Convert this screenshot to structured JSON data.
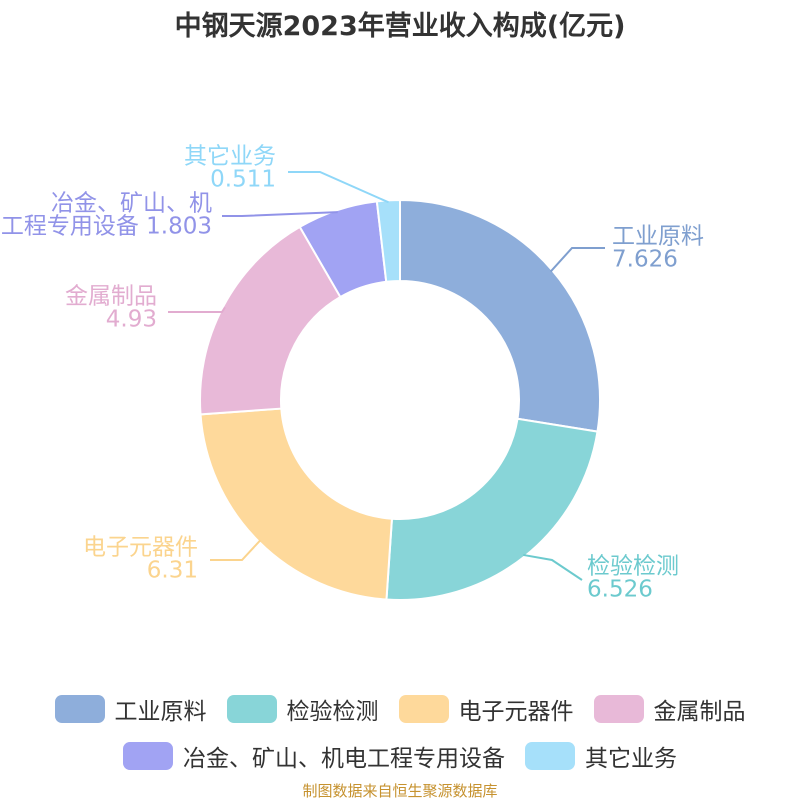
{
  "chart_data": {
    "type": "pie",
    "title": "中钢天源2023年营业收入构成(亿元)",
    "slices": [
      {
        "label_lines": [
          "工业原料"
        ],
        "value_text": "7.626",
        "value": 7.626,
        "color": "#8eaedb",
        "label_color": "#7f9fcf"
      },
      {
        "label_lines": [
          "检验检测"
        ],
        "value_text": "6.526",
        "value": 6.526,
        "color": "#88d5d8",
        "label_color": "#6ccace"
      },
      {
        "label_lines": [
          "电子元器件"
        ],
        "value_text": "6.31",
        "value": 6.31,
        "color": "#fed99b",
        "label_color": "#fbd48e"
      },
      {
        "label_lines": [
          "金属制品"
        ],
        "value_text": "4.93",
        "value": 4.93,
        "color": "#e8b9d8",
        "label_color": "#e2acd0"
      },
      {
        "label_lines": [
          "冶金、矿山、机",
          "工程专用设备"
        ],
        "value_text": "1.803",
        "value": 1.803,
        "color": "#a1a3f3",
        "label_color": "#9193e8"
      },
      {
        "label_lines": [
          "其它业务"
        ],
        "value_text": "0.511",
        "value": 0.511,
        "color": "#a6e0fa",
        "label_color": "#8fd7f8"
      }
    ],
    "legend": {
      "placement": "bottom",
      "rows": [
        [
          "工业原料",
          "检验检测",
          "电子元器件",
          "金属制品"
        ],
        [
          "冶金、矿山、机电工程专用设备",
          "其它业务"
        ]
      ]
    }
  },
  "footer": {
    "source": "制图数据来自恒生聚源数据库"
  }
}
